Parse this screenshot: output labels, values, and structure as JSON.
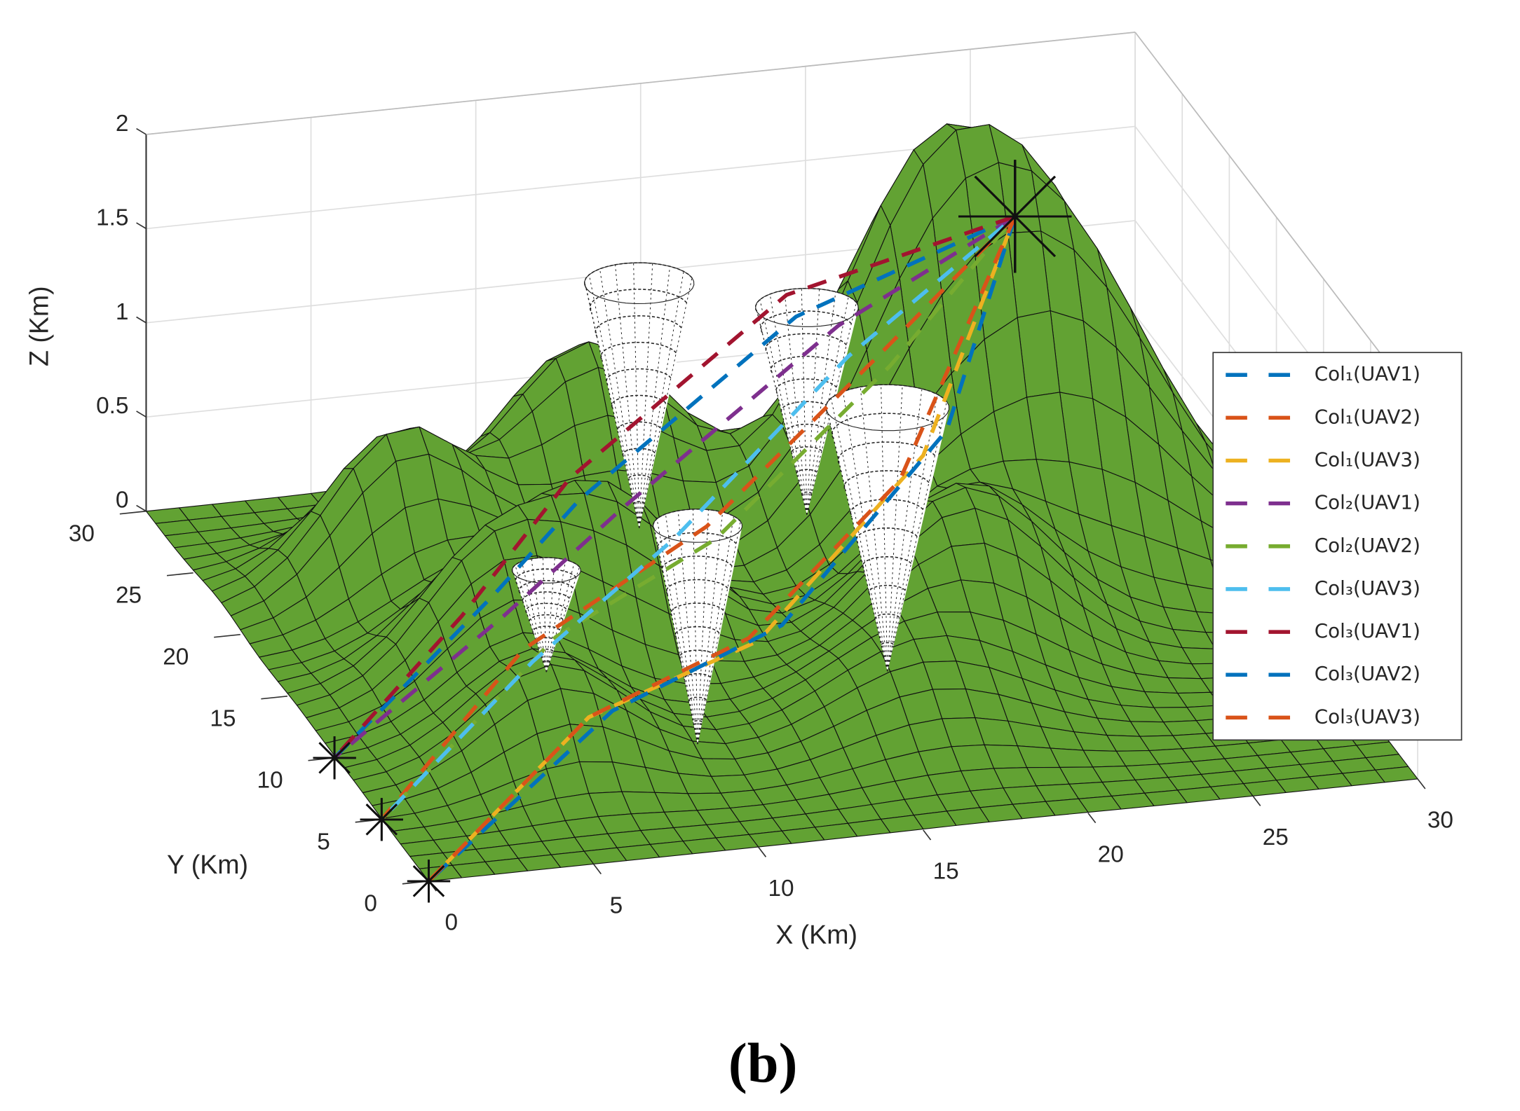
{
  "chart_data": {
    "type": "surface3d",
    "xlabel": "X (Km)",
    "ylabel": "Y (Km)",
    "zlabel": "Z (Km)",
    "caption": "(b)",
    "xlim": [
      0,
      30
    ],
    "ylim": [
      0,
      30
    ],
    "zlim": [
      0,
      2
    ],
    "xticks": [
      0,
      5,
      10,
      15,
      20,
      25,
      30
    ],
    "yticks": [
      0,
      5,
      10,
      15,
      20,
      25,
      30
    ],
    "zticks": [
      0,
      0.5,
      1,
      1.5,
      2
    ],
    "grid": true,
    "legend": "east",
    "surface_color": "#62a233",
    "threat_color": "#ffffff",
    "peaks": [
      {
        "x": 21,
        "y": 22,
        "z": 1.6,
        "spread": 2.8
      },
      {
        "x": 25,
        "y": 20,
        "z": 1.4,
        "spread": 3
      },
      {
        "x": 12,
        "y": 25,
        "z": 1.0,
        "spread": 2.5
      },
      {
        "x": 5.5,
        "y": 22,
        "z": 0.85,
        "spread": 2.2
      },
      {
        "x": 6,
        "y": 8,
        "z": 0.5,
        "spread": 2.2
      },
      {
        "x": 17,
        "y": 8,
        "z": 0.4,
        "spread": 2.8
      },
      {
        "x": 20,
        "y": 13,
        "z": 0.8,
        "spread": 2.5
      },
      {
        "x": 6,
        "y": 14,
        "z": 0.7,
        "spread": 2.2
      },
      {
        "x": 10,
        "y": 16,
        "z": 0.8,
        "spread": 2.3
      }
    ],
    "threats": [
      {
        "x": 13.5,
        "y": 24.9,
        "z": 1.3,
        "radius": 1.6
      },
      {
        "x": 18.5,
        "y": 24.6,
        "z": 1.1,
        "radius": 1.5
      },
      {
        "x": 17.4,
        "y": 12.2,
        "z": 1.4,
        "radius": 1.8
      },
      {
        "x": 7.8,
        "y": 14.8,
        "z": 0.54,
        "radius": 1.0
      },
      {
        "x": 10.5,
        "y": 8.2,
        "z": 1.16,
        "radius": 1.3
      }
    ],
    "series": [
      {
        "name": "Col₁(UAV1)",
        "color": "#0072bd",
        "x": [
          0,
          6,
          10,
          18,
          25.5
        ],
        "y": [
          10,
          14,
          19,
          24,
          27
        ],
        "z": [
          0,
          0.5,
          0.6,
          1.1,
          1.3
        ]
      },
      {
        "name": "Col₁(UAV2)",
        "color": "#d95319",
        "x": [
          0,
          6,
          13,
          20,
          25.5
        ],
        "y": [
          5,
          11,
          16,
          22,
          27
        ],
        "z": [
          0,
          0.4,
          0.6,
          1.0,
          1.3
        ]
      },
      {
        "name": "Col₁(UAV3)",
        "color": "#edb120",
        "x": [
          0,
          6,
          12,
          19,
          25.5
        ],
        "y": [
          0,
          4,
          7,
          14,
          27
        ],
        "z": [
          0,
          0.5,
          0.6,
          1.0,
          1.3
        ]
      },
      {
        "name": "Col₂(UAV1)",
        "color": "#7e2f8e",
        "x": [
          0,
          6,
          11,
          19,
          25.5
        ],
        "y": [
          10,
          13,
          18,
          23,
          27
        ],
        "z": [
          0,
          0.45,
          0.6,
          1.1,
          1.3
        ]
      },
      {
        "name": "Col₂(UAV2)",
        "color": "#77ac30",
        "x": [
          0,
          7,
          13,
          20,
          25.5
        ],
        "y": [
          5,
          11,
          15,
          21,
          27
        ],
        "z": [
          0,
          0.45,
          0.6,
          1.0,
          1.3
        ]
      },
      {
        "name": "Col₃(UAV3)",
        "color": "#4dbeee",
        "x": [
          0,
          6,
          12,
          19,
          25.5
        ],
        "y": [
          5,
          10,
          16,
          22,
          27
        ],
        "z": [
          0,
          0.4,
          0.55,
          1.0,
          1.3
        ]
      },
      {
        "name": "Col₃(UAV1)",
        "color": "#a2142f",
        "x": [
          0,
          5,
          10,
          18,
          25.5
        ],
        "y": [
          10,
          14,
          20,
          25,
          27
        ],
        "z": [
          0,
          0.4,
          0.65,
          1.15,
          1.3
        ]
      },
      {
        "name": "Col₃(UAV2)",
        "color": "#0072bd",
        "x": [
          0,
          7,
          13,
          20,
          25.5
        ],
        "y": [
          0,
          5,
          8,
          15,
          27
        ],
        "z": [
          0,
          0.45,
          0.6,
          1.05,
          1.3
        ]
      },
      {
        "name": "Col₃(UAV3)",
        "color": "#d95319",
        "x": [
          0,
          6,
          12,
          18,
          25.5
        ],
        "y": [
          0,
          4,
          8,
          13,
          27
        ],
        "z": [
          0,
          0.5,
          0.55,
          0.95,
          1.3
        ]
      }
    ]
  }
}
